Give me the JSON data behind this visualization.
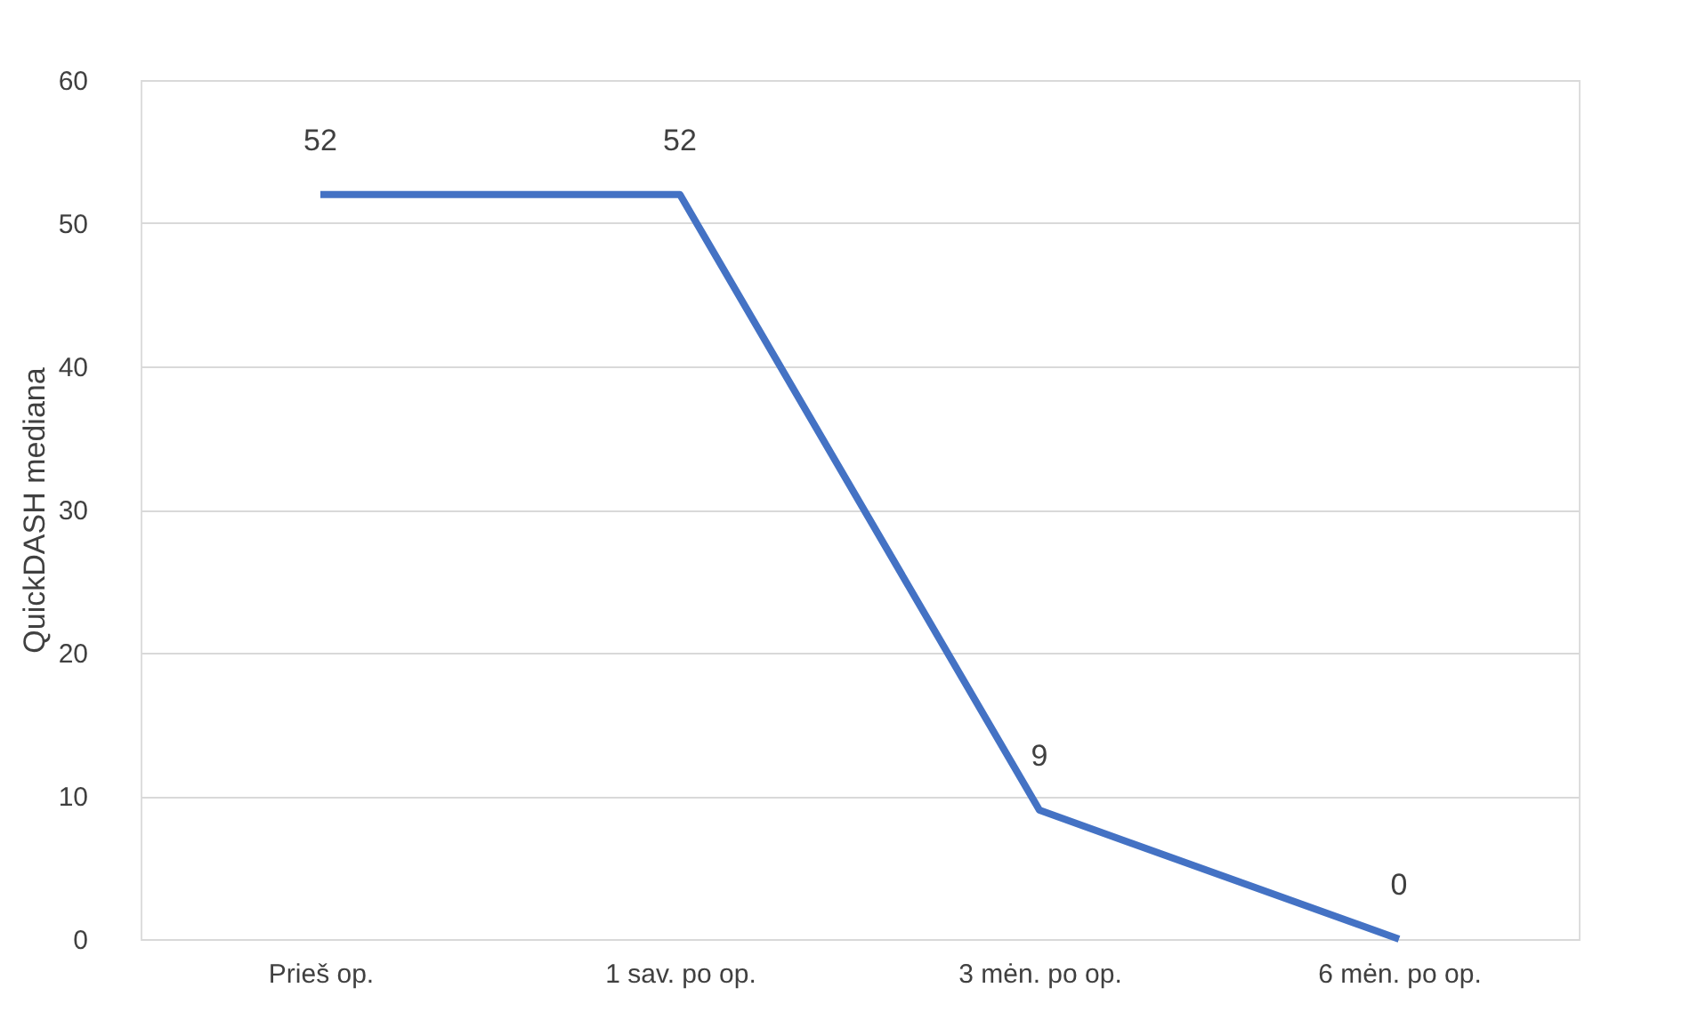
{
  "chart_data": {
    "type": "line",
    "ylabel": "QuickDASH mediana",
    "categories": [
      "Prieš op.",
      "1 sav. po op.",
      "3 mėn. po op.",
      "6 mėn. po op."
    ],
    "series": [
      {
        "color": "#4472c4",
        "values": [
          52,
          52,
          9,
          0
        ]
      }
    ],
    "ylim": [
      0,
      60
    ],
    "yticks": [
      0,
      10,
      20,
      30,
      40,
      50,
      60
    ],
    "grid": "y",
    "data_labels": true,
    "legend": false,
    "marker": "none",
    "line_style": "solid"
  }
}
